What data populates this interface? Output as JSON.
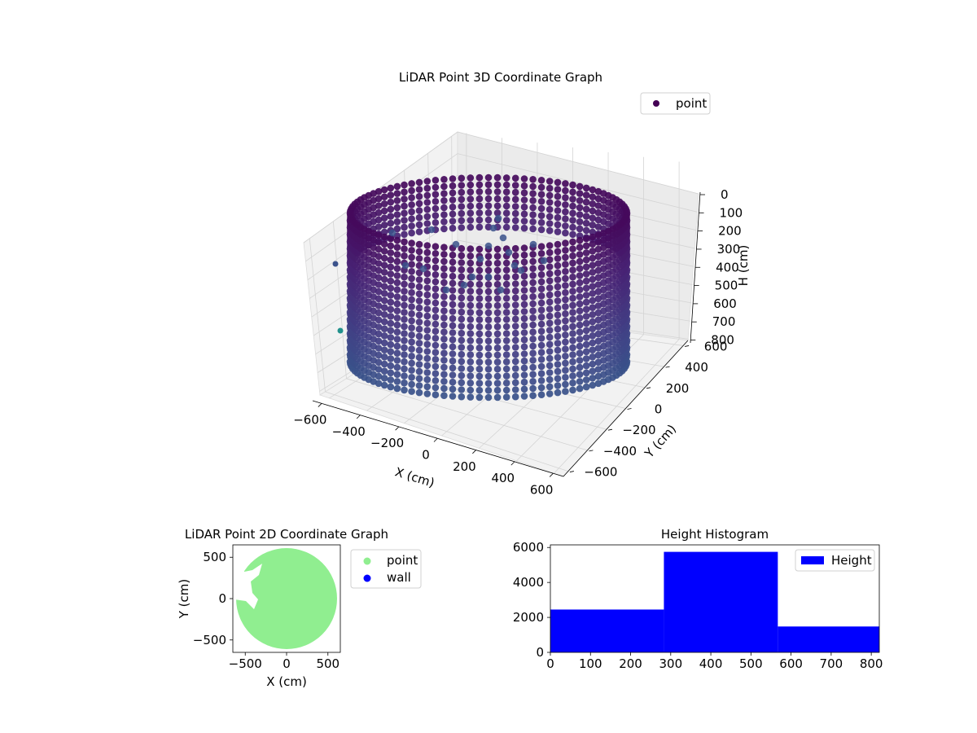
{
  "chart_data": [
    {
      "type": "scatter",
      "title": "LiDAR Point 3D Coordinate Graph",
      "xlabel": "X (cm)",
      "ylabel": "Y (cm)",
      "zlabel": "H (cm)",
      "legend": [
        "point"
      ],
      "legend_loc": "upper right",
      "xticks": [
        "−600",
        "−400",
        "−200",
        "0",
        "200",
        "400",
        "600"
      ],
      "yticks": [
        "−600",
        "−400",
        "−200",
        "0",
        "200",
        "400",
        "600"
      ],
      "zticks": [
        "0",
        "100",
        "200",
        "300",
        "400",
        "500",
        "600",
        "700",
        "800"
      ],
      "xlim": [
        -650,
        650
      ],
      "ylim": [
        -650,
        650
      ],
      "zlim": [
        0,
        820
      ],
      "z_inverted": true,
      "series": [
        {
          "name": "point",
          "shape": "cylindrical wall of points",
          "radius": 600,
          "h_range": [
            0,
            820
          ],
          "colormap": "viridis"
        }
      ],
      "colors": {
        "point_dark": "#440154",
        "point_mid": "#3b528b",
        "point_teal": "#21918c"
      }
    },
    {
      "type": "scatter",
      "title": "LiDAR Point 2D Coordinate Graph",
      "xlabel": "X (cm)",
      "ylabel": "Y (cm)",
      "xticks": [
        "−500",
        "0",
        "500"
      ],
      "yticks": [
        "500",
        "0",
        "−500"
      ],
      "xlim": [
        -650,
        650
      ],
      "ylim": [
        -650,
        650
      ],
      "legend": [
        "point",
        "wall"
      ],
      "legend_loc": "outside right",
      "series": [
        {
          "name": "point",
          "color": "#90ee90",
          "shape": "filled disk",
          "radius": 600
        },
        {
          "name": "wall",
          "color": "#0000ff"
        }
      ]
    },
    {
      "type": "bar",
      "title": "Height Histogram",
      "xlabel": "",
      "ylabel": "",
      "xlim": [
        0,
        820
      ],
      "ylim": [
        0,
        6150
      ],
      "xticks": [
        "0",
        "100",
        "200",
        "300",
        "400",
        "500",
        "600",
        "700",
        "800"
      ],
      "yticks": [
        "0",
        "2000",
        "4000",
        "6000"
      ],
      "legend": [
        "Height"
      ],
      "legend_loc": "upper right",
      "series": [
        {
          "name": "Height",
          "color": "#0000ff",
          "bins": [
            [
              0,
              283
            ],
            [
              283,
              567
            ],
            [
              567,
              820
            ]
          ],
          "values": [
            2450,
            5750,
            1480
          ]
        }
      ]
    }
  ]
}
